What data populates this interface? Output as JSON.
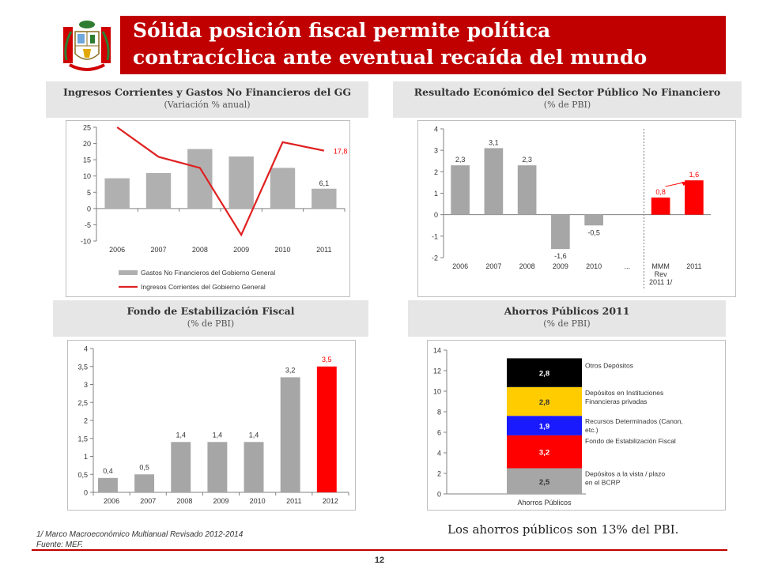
{
  "slide": {
    "title_line1": "Sólida posición fiscal permite política",
    "title_line2": "contracíclica ante eventual recaída del mundo",
    "accent_color": "#c00000",
    "note1": "1/ Marco Macroeconómico Multianual Revisado 2012-2014",
    "note2": "Fuente: MEF.",
    "summary": "Los ahorros públicos son 13% del PBI.",
    "page_number": "12"
  },
  "panels": [
    {
      "title": "Ingresos Corrientes y Gastos No Financieros del GG",
      "subtitle": "(Variación % anual)"
    },
    {
      "title": "Resultado Económico del Sector Público No Financiero",
      "subtitle": "(% de PBI)"
    },
    {
      "title": "Fondo de Estabilización Fiscal",
      "subtitle": "(% de PBI)"
    },
    {
      "title": "Ahorros Públicos 2011",
      "subtitle": "(%  de PBI)"
    }
  ],
  "chart_data": [
    {
      "type": "bar",
      "categories": [
        "2006",
        "2007",
        "2008",
        "2009",
        "2010",
        "2011"
      ],
      "series": [
        {
          "name": "Gastos No Financieros del Gobierno General",
          "kind": "bar",
          "color": "#b0b0b0",
          "values": [
            9.3,
            10.9,
            18.3,
            16.0,
            12.5,
            6.1
          ]
        },
        {
          "name": "Ingresos Corrientes del Gobierno General",
          "kind": "line",
          "color": "#e02020",
          "values": [
            25.5,
            15.9,
            12.5,
            -8.1,
            20.4,
            17.8
          ]
        }
      ],
      "data_labels": [
        {
          "series": 0,
          "index": 5,
          "text": "6,1"
        },
        {
          "series": 1,
          "index": 5,
          "text": "17,8"
        }
      ],
      "ylim": [
        -10,
        25
      ],
      "yticks": [
        "-10",
        "-5",
        "0",
        "5",
        "10",
        "15",
        "20",
        "25"
      ],
      "legend": "bottom"
    },
    {
      "type": "bar",
      "categories": [
        "2006",
        "2007",
        "2008",
        "2009",
        "2010",
        "...",
        "MMM Rev 2011 1/",
        "2011"
      ],
      "values": [
        2.3,
        3.1,
        2.3,
        -1.6,
        -0.5,
        null,
        0.8,
        1.6
      ],
      "labels": [
        "2,3",
        "3,1",
        "2,3",
        "-1,6",
        "-0,5",
        "",
        "0,8",
        "1,6"
      ],
      "colors": [
        "#a6a6a6",
        "#a6a6a6",
        "#a6a6a6",
        "#a6a6a6",
        "#a6a6a6",
        "",
        "#ff0000",
        "#ff0000"
      ],
      "ylim": [
        -2,
        4
      ],
      "yticks": [
        "-2",
        "-1",
        "0",
        "1",
        "2",
        "3",
        "4"
      ]
    },
    {
      "type": "bar",
      "categories": [
        "2006",
        "2007",
        "2008",
        "2009",
        "2010",
        "2011",
        "2012"
      ],
      "values": [
        0.4,
        0.5,
        1.4,
        1.4,
        1.4,
        3.2,
        3.5
      ],
      "labels": [
        "0,4",
        "0,5",
        "1,4",
        "1,4",
        "1,4",
        "3,2",
        "3,5"
      ],
      "colors": [
        "#a6a6a6",
        "#a6a6a6",
        "#a6a6a6",
        "#a6a6a6",
        "#a6a6a6",
        "#a6a6a6",
        "#ff0000"
      ],
      "ylim": [
        0,
        4
      ],
      "yticks": [
        "0",
        "0,5",
        "1",
        "1,5",
        "2",
        "2,5",
        "3",
        "3,5",
        "4"
      ]
    },
    {
      "type": "bar",
      "stacked": true,
      "categories": [
        "Ahorros Públicos"
      ],
      "segments": [
        {
          "name": "Depósitos a la vista / plazo en el BCRP",
          "value": 2.5,
          "label": "2,5",
          "color": "#a6a6a6"
        },
        {
          "name": "Fondo de Estabilización Fiscal",
          "value": 3.2,
          "label": "3,2",
          "color": "#ff0000"
        },
        {
          "name": "Recursos Determinados (Canon, etc.)",
          "value": 1.9,
          "label": "1,9",
          "color": "#1a1aff"
        },
        {
          "name": "Depósitos en Instituciones Financieras privadas",
          "value": 2.8,
          "label": "2,8",
          "color": "#ffcc00"
        },
        {
          "name": "Otros Depósitos",
          "value": 2.8,
          "label": "2,8",
          "color": "#000000"
        }
      ],
      "ylim": [
        0,
        14
      ],
      "yticks": [
        "0",
        "2",
        "4",
        "6",
        "8",
        "10",
        "12",
        "14"
      ],
      "legend": "right"
    }
  ]
}
